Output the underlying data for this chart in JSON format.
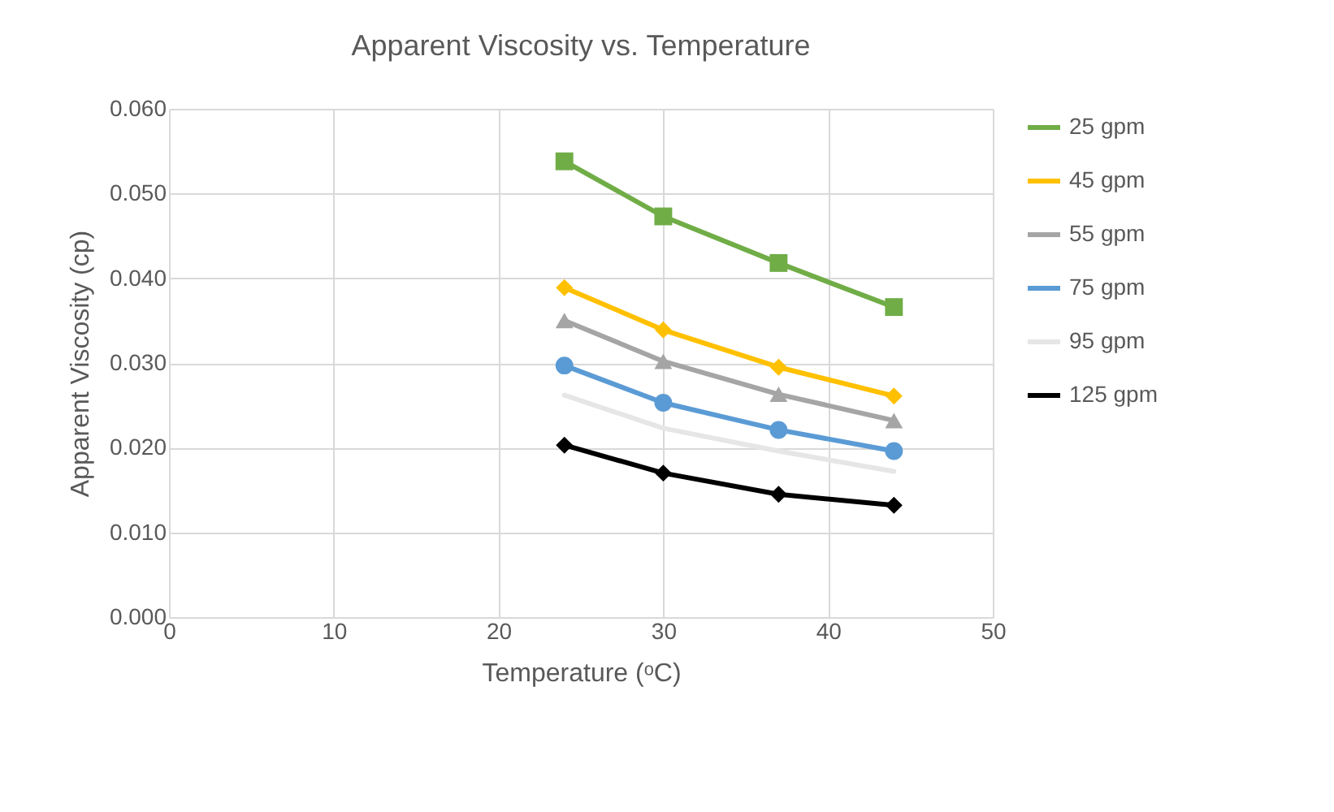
{
  "chart_data": {
    "type": "line",
    "title": "Apparent Viscosity vs. Temperature",
    "xlabel": "Temperature (ᵒC)",
    "ylabel": "Apparent Viscosity (cp)",
    "x": [
      24,
      30,
      37,
      44
    ],
    "series": [
      {
        "name": "25 gpm",
        "color": "#70ad47",
        "marker": "square",
        "values": [
          0.0538,
          0.0473,
          0.0418,
          0.0366
        ]
      },
      {
        "name": "45 gpm",
        "color": "#ffc000",
        "marker": "diamond",
        "values": [
          0.0389,
          0.0339,
          0.0295,
          0.0261
        ]
      },
      {
        "name": "55 gpm",
        "color": "#a5a5a5",
        "marker": "triangle",
        "values": [
          0.035,
          0.0302,
          0.0263,
          0.0232
        ]
      },
      {
        "name": "75 gpm",
        "color": "#5b9bd5",
        "marker": "circle",
        "values": [
          0.0297,
          0.0253,
          0.0221,
          0.0196
        ]
      },
      {
        "name": "95 gpm",
        "color": "#e7e6e6",
        "marker": "none",
        "values": [
          0.0262,
          0.0223,
          0.0196,
          0.0172
        ]
      },
      {
        "name": "125 gpm",
        "color": "#000000",
        "marker": "diamond",
        "values": [
          0.0203,
          0.017,
          0.0145,
          0.0132
        ]
      }
    ],
    "xlim": [
      0,
      50
    ],
    "xticks": [
      0,
      10,
      20,
      30,
      40,
      50
    ],
    "ylim": [
      0,
      0.06
    ],
    "yticks": [
      {
        "value": 0,
        "label": "0.000"
      },
      {
        "value": 0.01,
        "label": "0.010"
      },
      {
        "value": 0.02,
        "label": "0.020"
      },
      {
        "value": 0.03,
        "label": "0.030"
      },
      {
        "value": 0.04,
        "label": "0.040"
      },
      {
        "value": 0.05,
        "label": "0.050"
      },
      {
        "value": 0.06,
        "label": "0.060"
      }
    ],
    "grid": true,
    "legend": "right",
    "line_style": "solid"
  }
}
